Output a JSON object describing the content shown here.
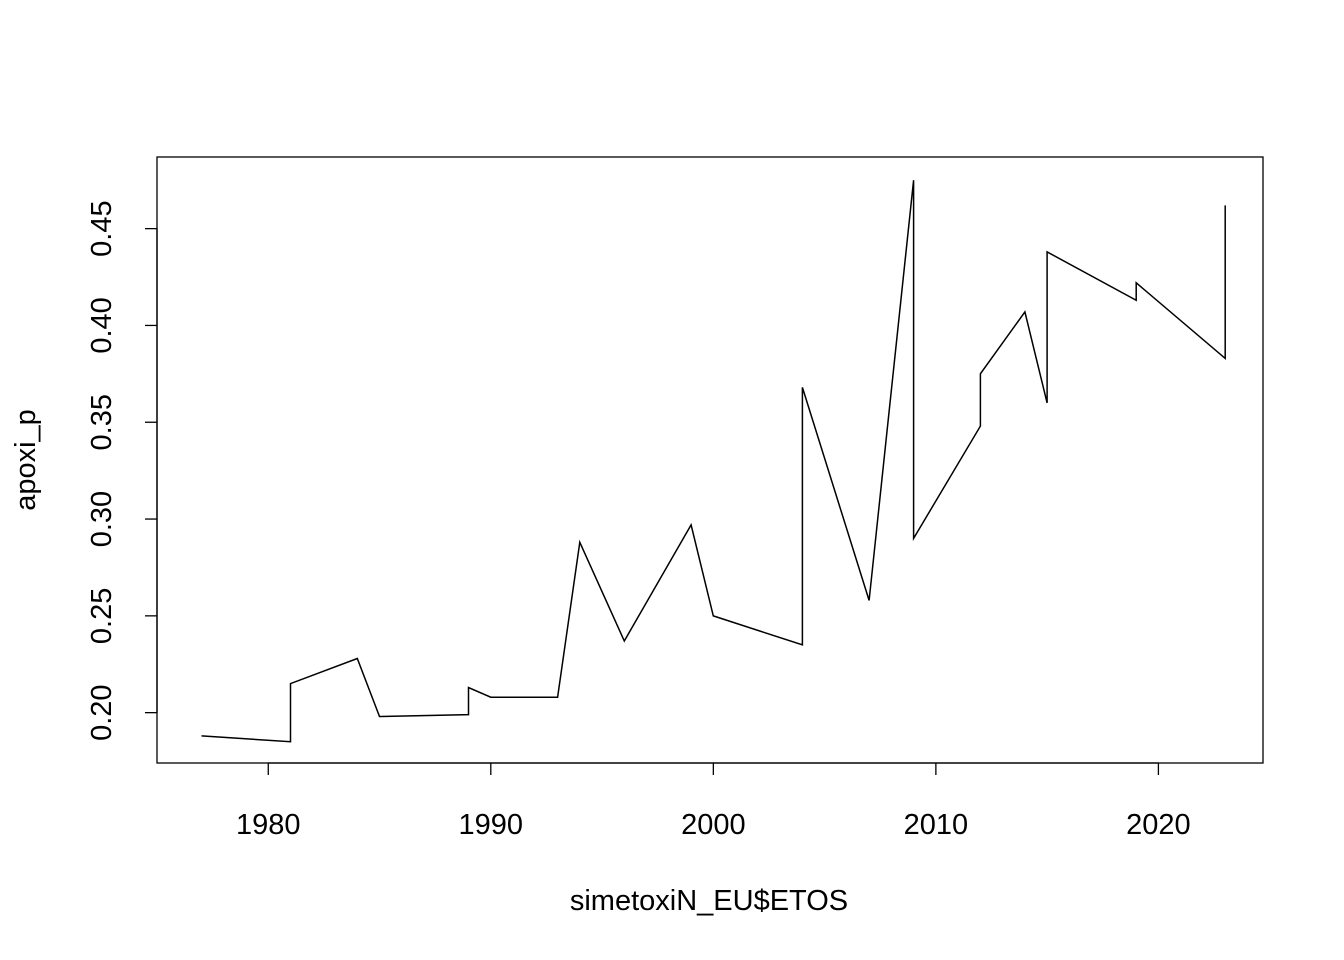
{
  "chart_data": {
    "type": "line",
    "title": "",
    "xlabel": "simetoxiN_EU$ETOS",
    "ylabel": "apoxi_p",
    "xlim": [
      1975.0,
      2024.7
    ],
    "ylim": [
      0.174,
      0.487
    ],
    "x_ticks": [
      "1980",
      "1990",
      "2000",
      "2010",
      "2020"
    ],
    "y_ticks": [
      "0.20",
      "0.25",
      "0.30",
      "0.35",
      "0.40",
      "0.45"
    ],
    "grid": false,
    "line_color": "#000000",
    "x": [
      1977,
      1981,
      1981,
      1984,
      1985,
      1989,
      1989,
      1990,
      1993,
      1994,
      1996,
      1999,
      2000,
      2004,
      2004,
      2007,
      2009,
      2009,
      2012,
      2012,
      2014,
      2015,
      2015,
      2019,
      2019,
      2023,
      2023
    ],
    "y": [
      0.188,
      0.185,
      0.215,
      0.228,
      0.198,
      0.199,
      0.213,
      0.208,
      0.208,
      0.288,
      0.237,
      0.297,
      0.25,
      0.235,
      0.368,
      0.258,
      0.475,
      0.29,
      0.348,
      0.375,
      0.407,
      0.36,
      0.438,
      0.413,
      0.422,
      0.383,
      0.462
    ]
  }
}
